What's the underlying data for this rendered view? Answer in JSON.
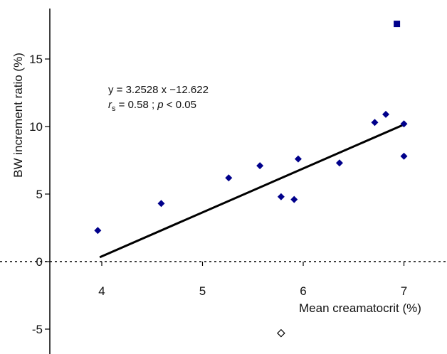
{
  "chart_data": {
    "type": "scatter",
    "xlabel": "Mean creamatocrit (%)",
    "ylabel": "BW increment ratio (%)",
    "x_ticks": [
      "4",
      "5",
      "6",
      "7"
    ],
    "y_ticks": [
      "15",
      "10",
      "5",
      "0",
      "-5"
    ],
    "xlim": [
      3.0,
      7.5
    ],
    "ylim": [
      -6.5,
      19.0
    ],
    "points": [
      {
        "x": 3.96,
        "y": 2.3,
        "marker": "diamond"
      },
      {
        "x": 4.59,
        "y": 4.3,
        "marker": "diamond"
      },
      {
        "x": 5.26,
        "y": 6.2,
        "marker": "diamond"
      },
      {
        "x": 5.57,
        "y": 7.1,
        "marker": "diamond"
      },
      {
        "x": 5.78,
        "y": 4.8,
        "marker": "diamond"
      },
      {
        "x": 5.91,
        "y": 4.6,
        "marker": "diamond"
      },
      {
        "x": 5.95,
        "y": 7.6,
        "marker": "diamond"
      },
      {
        "x": 6.36,
        "y": 7.3,
        "marker": "diamond"
      },
      {
        "x": 6.71,
        "y": 10.3,
        "marker": "diamond"
      },
      {
        "x": 6.82,
        "y": 10.9,
        "marker": "diamond"
      },
      {
        "x": 7.0,
        "y": 10.2,
        "marker": "diamond"
      },
      {
        "x": 7.0,
        "y": 7.8,
        "marker": "diamond"
      },
      {
        "x": 6.93,
        "y": 17.6,
        "marker": "square"
      },
      {
        "x": 5.78,
        "y": -5.3,
        "marker": "open-diamond"
      }
    ],
    "regression": {
      "slope": 3.2528,
      "intercept": -12.622,
      "x_range": [
        3.98,
        7.0
      ],
      "equation_text": "y = 3.2528 x −12.622",
      "stats_rs_symbol": "r",
      "stats_rs_sub": "s",
      "stats_rs_value": " = 0.58 ; ",
      "stats_p_symbol": "p",
      "stats_p_value": " < 0.05"
    },
    "zero_line": "dotted",
    "grid": false,
    "legend": "none",
    "colors": {
      "point_fill": "#00008b",
      "line": "#000000"
    }
  }
}
